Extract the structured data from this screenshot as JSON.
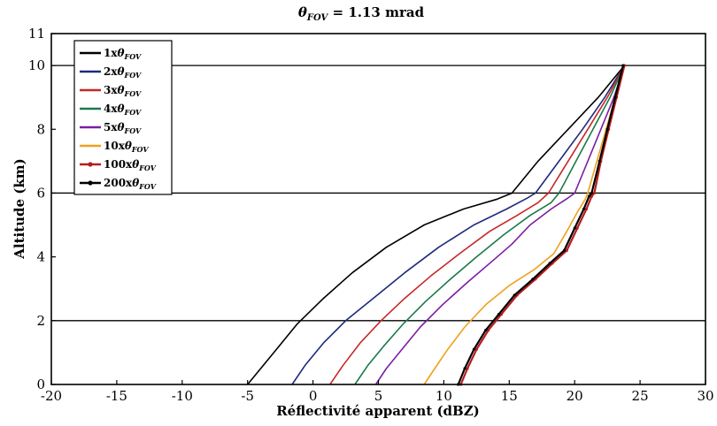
{
  "chart_data": {
    "type": "line",
    "title_main": "θ",
    "title_sub": "FOV",
    "title_rest": " = 1.13 mrad",
    "xlabel": "Réflectivité apparent (dBZ)",
    "ylabel": "Altitude (km)",
    "xlim": [
      -20,
      30
    ],
    "ylim": [
      0,
      11
    ],
    "xticks": [
      "-20",
      "-15",
      "-10",
      "-5",
      "0",
      "5",
      "10",
      "15",
      "20",
      "25",
      "30"
    ],
    "yticks": [
      "0",
      "2",
      "4",
      "6",
      "8",
      "10",
      "11"
    ],
    "grid": "horizontal lines at 2, 6 and 10 km",
    "legend_position": "top-left",
    "series": [
      {
        "name_prefix": "1x",
        "color": "#000000",
        "marker": "",
        "points": [
          [
            -5.0,
            0
          ],
          [
            -4.0,
            0.5
          ],
          [
            -2.6,
            1.2
          ],
          [
            -1.2,
            1.9
          ],
          [
            0.8,
            2.7
          ],
          [
            3.0,
            3.5
          ],
          [
            5.6,
            4.3
          ],
          [
            8.5,
            5.0
          ],
          [
            11.5,
            5.5
          ],
          [
            14.0,
            5.8
          ],
          [
            15.2,
            6.0
          ],
          [
            17.2,
            7.0
          ],
          [
            19.5,
            8.0
          ],
          [
            21.8,
            9.0
          ],
          [
            23.8,
            10.0
          ]
        ]
      },
      {
        "name_prefix": "2x",
        "color": "#1f2a7a",
        "marker": "",
        "points": [
          [
            -1.6,
            0
          ],
          [
            -0.6,
            0.6
          ],
          [
            0.8,
            1.3
          ],
          [
            2.5,
            2.0
          ],
          [
            4.6,
            2.7
          ],
          [
            7.0,
            3.5
          ],
          [
            9.6,
            4.3
          ],
          [
            12.3,
            5.0
          ],
          [
            14.8,
            5.5
          ],
          [
            16.4,
            5.85
          ],
          [
            17.0,
            6.0
          ],
          [
            18.8,
            7.0
          ],
          [
            20.6,
            8.0
          ],
          [
            22.3,
            9.0
          ],
          [
            23.8,
            10.0
          ]
        ]
      },
      {
        "name_prefix": "3x",
        "color": "#c62828",
        "marker": "",
        "points": [
          [
            1.3,
            0
          ],
          [
            2.3,
            0.6
          ],
          [
            3.6,
            1.3
          ],
          [
            5.2,
            2.0
          ],
          [
            7.0,
            2.7
          ],
          [
            9.0,
            3.4
          ],
          [
            11.2,
            4.1
          ],
          [
            13.5,
            4.8
          ],
          [
            15.6,
            5.3
          ],
          [
            17.2,
            5.7
          ],
          [
            18.0,
            6.0
          ],
          [
            19.5,
            7.0
          ],
          [
            21.0,
            8.0
          ],
          [
            22.5,
            9.0
          ],
          [
            23.8,
            10.0
          ]
        ]
      },
      {
        "name_prefix": "4x",
        "color": "#1a7a4a",
        "marker": "",
        "points": [
          [
            3.2,
            0
          ],
          [
            4.2,
            0.6
          ],
          [
            5.4,
            1.2
          ],
          [
            6.9,
            1.9
          ],
          [
            8.6,
            2.6
          ],
          [
            10.5,
            3.3
          ],
          [
            12.5,
            4.0
          ],
          [
            14.6,
            4.7
          ],
          [
            16.6,
            5.3
          ],
          [
            18.2,
            5.7
          ],
          [
            18.8,
            6.0
          ],
          [
            20.1,
            7.0
          ],
          [
            21.4,
            8.0
          ],
          [
            22.7,
            9.0
          ],
          [
            23.8,
            10.0
          ]
        ]
      },
      {
        "name_prefix": "5x",
        "color": "#7b1fa2",
        "marker": "",
        "points": [
          [
            4.8,
            0
          ],
          [
            5.6,
            0.5
          ],
          [
            6.8,
            1.1
          ],
          [
            8.2,
            1.8
          ],
          [
            9.9,
            2.5
          ],
          [
            11.8,
            3.2
          ],
          [
            13.8,
            3.9
          ],
          [
            15.2,
            4.4
          ],
          [
            16.6,
            5.0
          ],
          [
            18.2,
            5.5
          ],
          [
            19.5,
            5.85
          ],
          [
            20.0,
            6.0
          ],
          [
            21.0,
            7.0
          ],
          [
            22.0,
            8.0
          ],
          [
            23.0,
            9.0
          ],
          [
            23.8,
            10.0
          ]
        ]
      },
      {
        "name_prefix": "10x",
        "color": "#f0a020",
        "marker": "",
        "points": [
          [
            8.5,
            0
          ],
          [
            9.3,
            0.5
          ],
          [
            10.3,
            1.1
          ],
          [
            11.6,
            1.8
          ],
          [
            13.2,
            2.5
          ],
          [
            15.0,
            3.1
          ],
          [
            16.9,
            3.6
          ],
          [
            18.4,
            4.1
          ],
          [
            19.4,
            4.8
          ],
          [
            20.2,
            5.4
          ],
          [
            20.8,
            5.8
          ],
          [
            21.0,
            6.0
          ],
          [
            21.7,
            7.0
          ],
          [
            22.4,
            8.0
          ],
          [
            23.1,
            9.0
          ],
          [
            23.8,
            10.0
          ]
        ]
      },
      {
        "name_prefix": "100x",
        "color": "#b71c1c",
        "marker": "dot",
        "points": [
          [
            11.3,
            0
          ],
          [
            11.8,
            0.5
          ],
          [
            12.5,
            1.1
          ],
          [
            13.4,
            1.7
          ],
          [
            14.4,
            2.2
          ],
          [
            15.6,
            2.8
          ],
          [
            17.0,
            3.3
          ],
          [
            18.3,
            3.8
          ],
          [
            19.4,
            4.2
          ],
          [
            20.2,
            4.9
          ],
          [
            20.9,
            5.5
          ],
          [
            21.3,
            5.9
          ],
          [
            21.5,
            6.0
          ],
          [
            22.0,
            7.0
          ],
          [
            22.6,
            8.0
          ],
          [
            23.2,
            9.0
          ],
          [
            23.8,
            10.0
          ]
        ]
      },
      {
        "name_prefix": "200x",
        "color": "#000000",
        "marker": "dot",
        "points": [
          [
            11.1,
            0
          ],
          [
            11.6,
            0.5
          ],
          [
            12.3,
            1.1
          ],
          [
            13.2,
            1.7
          ],
          [
            14.2,
            2.2
          ],
          [
            15.4,
            2.8
          ],
          [
            16.8,
            3.3
          ],
          [
            18.1,
            3.8
          ],
          [
            19.2,
            4.2
          ],
          [
            20.0,
            4.9
          ],
          [
            20.7,
            5.5
          ],
          [
            21.1,
            5.9
          ],
          [
            21.3,
            6.0
          ],
          [
            21.9,
            7.0
          ],
          [
            22.5,
            8.0
          ],
          [
            23.1,
            9.0
          ],
          [
            23.7,
            10.0
          ]
        ]
      }
    ],
    "legend_symbol": "θ",
    "legend_subscript": "FOV"
  }
}
